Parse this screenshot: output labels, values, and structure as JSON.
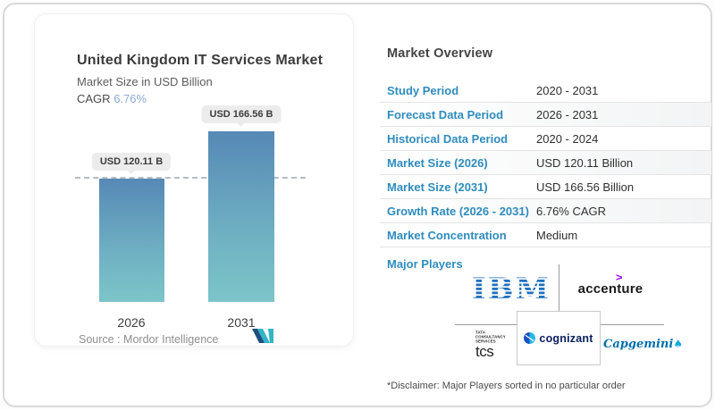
{
  "left_panel": {
    "title": "United Kingdom IT Services Market",
    "subtitle": "Market Size in USD Billion",
    "cagr_label": "CAGR",
    "cagr_value": "6.76%",
    "source_label": "Source :",
    "source_name": "Mordor Intelligence"
  },
  "chart_data": {
    "type": "bar",
    "title": "United Kingdom IT Services Market",
    "ylabel": "Market Size in USD Billion",
    "categories": [
      "2026",
      "2031"
    ],
    "values": [
      120.11,
      166.56
    ],
    "unit": "USD Billion",
    "bar_labels": [
      "USD 120.11 B",
      "USD 166.56 B"
    ],
    "cagr_percent": 6.76,
    "reference_line": {
      "at_value": 120.11,
      "style": "dashed"
    },
    "legend": "none",
    "grid": "off",
    "bar_color_top": "#5689b6",
    "bar_color_bottom": "#7cc5c9"
  },
  "overview": {
    "heading": "Market Overview",
    "rows": [
      {
        "label": "Study Period",
        "value": "2020 - 2031"
      },
      {
        "label": "Forecast Data Period",
        "value": "2026 - 2031"
      },
      {
        "label": "Historical Data Period",
        "value": "2020 - 2024"
      },
      {
        "label": "Market Size (2026)",
        "value": "USD 120.11 Billion"
      },
      {
        "label": "Market Size (2031)",
        "value": "USD 166.56 Billion"
      },
      {
        "label": "Growth Rate (2026 - 2031)",
        "value": "6.76% CAGR"
      },
      {
        "label": "Market Concentration",
        "value": "Medium"
      }
    ],
    "major_players_label": "Major Players",
    "disclaimer": "*Disclaimer: Major Players sorted in no particular order"
  },
  "players": {
    "ibm": "IBM",
    "accenture": {
      "name": "accenture",
      "symbol": ">"
    },
    "tcs": {
      "line1": "TATA",
      "line2": "CONSULTANCY",
      "line3": "SERVICES",
      "wordmark": "tcs"
    },
    "cognizant": "cognizant",
    "capgemini": {
      "name": "Capgemini",
      "symbol": "♠"
    }
  },
  "colors": {
    "accent_blue": "#2e8cbe",
    "cagr_blue": "#8aa9cf",
    "ibm_blue": "#1f70c1",
    "accenture_purple": "#a100ff",
    "cognizant_navy": "#0a1e5e",
    "capgemini_blue": "#0070ad",
    "bar_top": "#5689b6",
    "bar_bottom": "#7cc5c9",
    "divider_gray": "#9b9b9b"
  }
}
